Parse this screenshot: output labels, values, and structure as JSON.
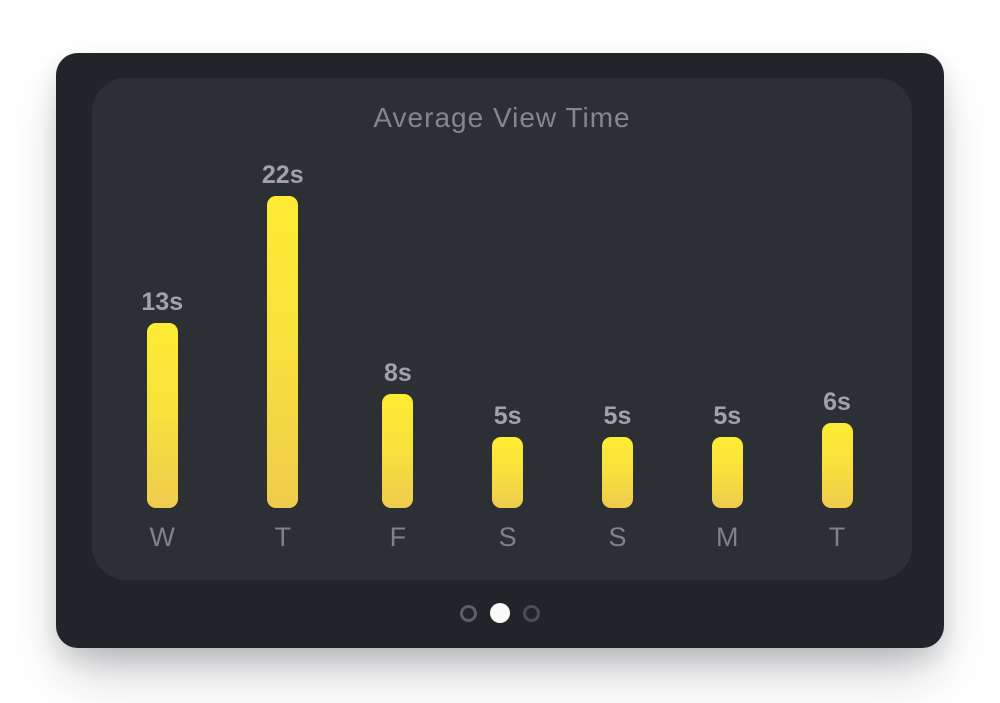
{
  "card": {
    "title": "Average View Time"
  },
  "chart_data": {
    "type": "bar",
    "title": "Average View Time",
    "categories": [
      "W",
      "T",
      "F",
      "S",
      "S",
      "M",
      "T"
    ],
    "values": [
      13,
      22,
      8,
      5,
      5,
      5,
      6
    ],
    "value_labels": [
      "13s",
      "22s",
      "8s",
      "5s",
      "5s",
      "5s",
      "6s"
    ],
    "unit": "s",
    "xlabel": "",
    "ylabel": "",
    "ylim": [
      0,
      22
    ],
    "grid": false,
    "legend": false,
    "bar_color_top": "#fdec33",
    "bar_color_bottom": "#efcb4d"
  },
  "pagination": {
    "active_index": 1,
    "dots": [
      {
        "state": "inactive",
        "color": "#5c5f64"
      },
      {
        "state": "active",
        "color": "#fafafa"
      },
      {
        "state": "inactive",
        "color": "#4b4e53"
      }
    ]
  },
  "colors": {
    "page_bg": "#ffffff",
    "frame_bg": "#212429",
    "card_bg": "#2c2f34",
    "title_text": "#84878c",
    "value_text": "#a0a2a6",
    "day_text": "#7f8286",
    "dot_active": "#fafafa",
    "dot_inactive": "#55585d"
  }
}
